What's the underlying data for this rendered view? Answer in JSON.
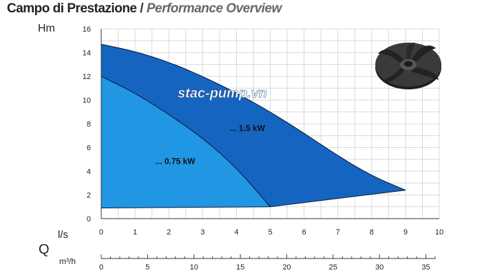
{
  "header": {
    "title_main": "Campo di Prestazione",
    "title_sep": " / ",
    "title_sub": "Performance Overview"
  },
  "watermark": "stac-pump.vn",
  "chart_data": {
    "type": "area",
    "y_unit_label": "Hm",
    "x_unit_label": "l/s",
    "q_label": "Q",
    "secondary_x_unit_label": "m³/h",
    "xlim": [
      0,
      10
    ],
    "ylim": [
      0,
      16
    ],
    "x_ticks": [
      0,
      1,
      2,
      3,
      4,
      5,
      6,
      7,
      8,
      9,
      10
    ],
    "y_ticks": [
      0,
      2,
      4,
      6,
      8,
      10,
      12,
      14,
      16
    ],
    "secondary_x_ticks": [
      0,
      5,
      10,
      15,
      20,
      25,
      30,
      35
    ],
    "secondary_xlim": [
      0,
      36
    ],
    "grid": true,
    "series": [
      {
        "name": "... 1.5 kW",
        "color": "#1565c0",
        "upper": [
          [
            0,
            14.7
          ],
          [
            1,
            14.1
          ],
          [
            2,
            13.2
          ],
          [
            3,
            12.0
          ],
          [
            4,
            10.6
          ],
          [
            5,
            9.0
          ],
          [
            6,
            7.2
          ],
          [
            7,
            5.3
          ],
          [
            8,
            3.6
          ],
          [
            9,
            2.4
          ]
        ],
        "lower": [
          [
            9,
            2.4
          ],
          [
            5,
            1.0
          ],
          [
            0,
            0.9
          ]
        ]
      },
      {
        "name": "... 0.75 kW",
        "color": "#2196e3",
        "upper": [
          [
            0,
            12.0
          ],
          [
            1,
            10.6
          ],
          [
            2,
            8.8
          ],
          [
            3,
            6.8
          ],
          [
            4,
            4.3
          ],
          [
            5,
            1.0
          ]
        ],
        "lower": [
          [
            5,
            1.0
          ],
          [
            0,
            0.9
          ]
        ]
      }
    ]
  },
  "colors": {
    "grid": "#d8d8d8",
    "outer_region": "#1565c0",
    "inner_region": "#2196e3",
    "impeller": "#333333"
  }
}
